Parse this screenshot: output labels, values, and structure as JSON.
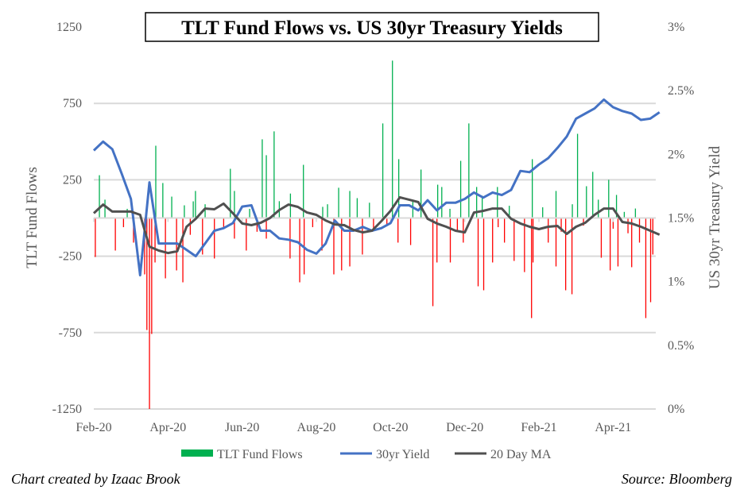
{
  "chart_data": {
    "type": "bar+line",
    "title": "TLT Fund Flows vs. US 30yr Treasury Yields",
    "ylabel_left": "TLT Fund Flows",
    "ylabel_right": "US 30yr Treasury Yield",
    "x_unit": "months since Feb-20",
    "xlim": [
      0,
      15.15
    ],
    "x_ticks": [
      {
        "x": 0,
        "label": "Feb-20"
      },
      {
        "x": 2,
        "label": "Apr-20"
      },
      {
        "x": 4,
        "label": "Jun-20"
      },
      {
        "x": 6,
        "label": "Aug-20"
      },
      {
        "x": 8,
        "label": "Oct-20"
      },
      {
        "x": 10,
        "label": "Dec-20"
      },
      {
        "x": 12,
        "label": "Feb-21"
      },
      {
        "x": 14,
        "label": "Apr-21"
      }
    ],
    "ylim_left": [
      -1250,
      1250
    ],
    "y_ticks_left": [
      "1250",
      "750",
      "250",
      "-250",
      "-750",
      "-1250"
    ],
    "y_tick_values_left": [
      1250,
      750,
      250,
      -250,
      -750,
      -1250
    ],
    "ylim_right": [
      0,
      3
    ],
    "y_ticks_right": [
      "3%",
      "2.5%",
      "2%",
      "1.5%",
      "1%",
      "0.5%",
      "0%"
    ],
    "y_tick_values_right": [
      3,
      2.5,
      2,
      1.5,
      1,
      0.5,
      0
    ],
    "gridlines_left": [
      750,
      250,
      -250,
      -750,
      -1250
    ],
    "legend_position": "bottom",
    "colors": {
      "positive_flow": "#00b050",
      "negative_flow": "#ff0000",
      "yield": "#4472c4",
      "ma": "#505050",
      "grid": "#d9d9d9"
    },
    "series": [
      {
        "name": "TLT Fund Flows",
        "type": "bar",
        "axis": "left",
        "points": [
          [
            0.15,
            280
          ],
          [
            1.67,
            473
          ],
          [
            1.86,
            229
          ],
          [
            2.44,
            83
          ],
          [
            2.68,
            109
          ],
          [
            2.74,
            177
          ],
          [
            3.68,
            322
          ],
          [
            3.79,
            177
          ],
          [
            4.54,
            515
          ],
          [
            4.65,
            411
          ],
          [
            4.86,
            567
          ],
          [
            5.65,
            348
          ],
          [
            6.17,
            73
          ],
          [
            6.6,
            198
          ],
          [
            6.9,
            177
          ],
          [
            7.43,
            100
          ],
          [
            7.79,
            619
          ],
          [
            8.05,
            1030
          ],
          [
            8.22,
            385
          ],
          [
            8.82,
            317
          ],
          [
            9.27,
            218
          ],
          [
            9.38,
            203
          ],
          [
            9.89,
            374
          ],
          [
            10.11,
            619
          ],
          [
            10.32,
            203
          ],
          [
            10.47,
            146
          ],
          [
            10.88,
            203
          ],
          [
            11.82,
            385
          ],
          [
            12.46,
            177
          ],
          [
            13.04,
            551
          ],
          [
            13.28,
            208
          ],
          [
            13.45,
            302
          ],
          [
            13.88,
            250
          ],
          [
            14.09,
            151
          ],
          [
            14.6,
            62
          ],
          [
            0.3,
            120
          ],
          [
            0.9,
            60
          ],
          [
            2.1,
            140
          ],
          [
            3.0,
            90
          ],
          [
            4.2,
            60
          ],
          [
            5.0,
            110
          ],
          [
            5.3,
            160
          ],
          [
            6.3,
            90
          ],
          [
            7.1,
            130
          ],
          [
            8.6,
            120
          ],
          [
            9.6,
            60
          ],
          [
            11.2,
            80
          ],
          [
            12.1,
            70
          ],
          [
            12.9,
            90
          ],
          [
            13.6,
            120
          ],
          [
            14.3,
            40
          ],
          [
            0.04,
            -255
          ],
          [
            0.58,
            -213
          ],
          [
            1.07,
            -161
          ],
          [
            1.37,
            -369
          ],
          [
            1.43,
            -733
          ],
          [
            1.5,
            -1250
          ],
          [
            1.56,
            -759
          ],
          [
            1.65,
            -291
          ],
          [
            1.93,
            -395
          ],
          [
            2.23,
            -343
          ],
          [
            2.4,
            -421
          ],
          [
            2.93,
            -239
          ],
          [
            3.25,
            -265
          ],
          [
            3.79,
            -135
          ],
          [
            4.11,
            -213
          ],
          [
            4.65,
            -135
          ],
          [
            5.29,
            -265
          ],
          [
            5.55,
            -421
          ],
          [
            5.67,
            -369
          ],
          [
            6.15,
            -213
          ],
          [
            6.47,
            -369
          ],
          [
            6.68,
            -343
          ],
          [
            6.9,
            -317
          ],
          [
            7.24,
            -239
          ],
          [
            7.54,
            -83
          ],
          [
            8.2,
            -161
          ],
          [
            8.54,
            -177
          ],
          [
            9.14,
            -577
          ],
          [
            9.25,
            -291
          ],
          [
            9.61,
            -291
          ],
          [
            9.96,
            -161
          ],
          [
            10.36,
            -447
          ],
          [
            10.51,
            -473
          ],
          [
            10.75,
            -291
          ],
          [
            11.07,
            -161
          ],
          [
            11.33,
            -281
          ],
          [
            11.61,
            -354
          ],
          [
            11.8,
            -655
          ],
          [
            11.84,
            -291
          ],
          [
            12.25,
            -161
          ],
          [
            12.46,
            -317
          ],
          [
            12.72,
            -473
          ],
          [
            12.89,
            -499
          ],
          [
            13.68,
            -260
          ],
          [
            13.92,
            -343
          ],
          [
            14.13,
            -317
          ],
          [
            14.5,
            -322
          ],
          [
            14.71,
            -161
          ],
          [
            14.88,
            -655
          ],
          [
            15.01,
            -551
          ],
          [
            15.07,
            -239
          ],
          [
            0.8,
            -60
          ],
          [
            2.6,
            -110
          ],
          [
            3.5,
            -70
          ],
          [
            4.4,
            -90
          ],
          [
            5.9,
            -60
          ],
          [
            7.9,
            -40
          ],
          [
            9.8,
            -80
          ],
          [
            10.9,
            -60
          ],
          [
            12.6,
            -90
          ],
          [
            13.2,
            -50
          ],
          [
            14.0,
            -70
          ],
          [
            14.4,
            -100
          ]
        ]
      },
      {
        "name": "30yr Yield",
        "type": "line",
        "axis": "right",
        "x_start": 0,
        "x_step": 0.25,
        "values": [
          2.03,
          2.1,
          2.04,
          1.85,
          1.65,
          1.05,
          1.78,
          1.3,
          1.3,
          1.3,
          1.25,
          1.2,
          1.3,
          1.4,
          1.42,
          1.46,
          1.59,
          1.6,
          1.4,
          1.4,
          1.34,
          1.33,
          1.31,
          1.25,
          1.22,
          1.3,
          1.48,
          1.4,
          1.4,
          1.43,
          1.4,
          1.42,
          1.46,
          1.6,
          1.6,
          1.56,
          1.64,
          1.56,
          1.62,
          1.62,
          1.65,
          1.7,
          1.66,
          1.7,
          1.68,
          1.72,
          1.87,
          1.86,
          1.92,
          1.97,
          2.05,
          2.14,
          2.28,
          2.32,
          2.36,
          2.43,
          2.37,
          2.34,
          2.32,
          2.27,
          2.28,
          2.33
        ]
      },
      {
        "name": "20 Day MA",
        "type": "line",
        "axis": "left",
        "x_start": 0,
        "x_step": 0.25,
        "values": [
          31,
          88,
          42,
          42,
          42,
          21,
          -187,
          -213,
          -229,
          -218,
          -57,
          -5,
          62,
          57,
          94,
          31,
          -36,
          -47,
          -31,
          0,
          52,
          88,
          73,
          36,
          21,
          -16,
          -42,
          -47,
          -78,
          -94,
          -83,
          -21,
          47,
          135,
          120,
          104,
          -5,
          -36,
          -57,
          -83,
          -94,
          36,
          47,
          62,
          62,
          -5,
          -36,
          -57,
          -73,
          -57,
          -52,
          -104,
          -57,
          -31,
          21,
          62,
          62,
          -26,
          -36,
          -57,
          -83,
          -109
        ]
      }
    ]
  },
  "legend": {
    "flows": "TLT Fund Flows",
    "yield": "30yr Yield",
    "ma": "20 Day MA"
  },
  "footer": {
    "credit": "Chart created by Izaac Brook",
    "source": "Source: Bloomberg"
  }
}
